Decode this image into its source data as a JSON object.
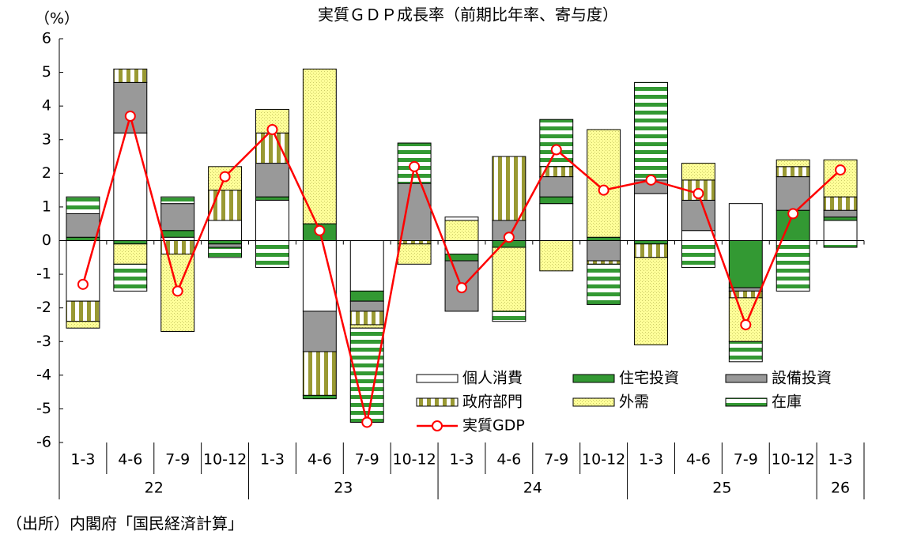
{
  "chart_data": {
    "type": "bar",
    "title": "実質ＧＤＰ成長率（前期比年率、寄与度）",
    "y_label": "（%）",
    "source": "（出所）内閣府「国民経済計算」",
    "groups": [
      {
        "label": "22",
        "categories": [
          "1-3",
          "4-6",
          "7-9",
          "10-12"
        ]
      },
      {
        "label": "23",
        "categories": [
          "1-3",
          "4-6",
          "7-9",
          "10-12"
        ]
      },
      {
        "label": "24",
        "categories": [
          "1-3",
          "4-6",
          "7-9",
          "10-12"
        ]
      },
      {
        "label": "25",
        "categories": [
          "1-3",
          "4-6",
          "7-9",
          "10-12"
        ]
      },
      {
        "label": "26",
        "categories": [
          "1-3"
        ]
      }
    ],
    "ylim": [
      -6,
      6
    ],
    "yticks": [
      -6,
      -5,
      -4,
      -3,
      -2,
      -1,
      0,
      1,
      2,
      3,
      4,
      5,
      6
    ],
    "stacked": true,
    "series": [
      {
        "name": "個人消費",
        "color": "#ffffff",
        "pattern": "solid",
        "values": [
          -1.8,
          3.2,
          0.1,
          0.6,
          1.2,
          -2.1,
          -1.5,
          0,
          -0.4,
          0,
          1.1,
          0,
          1.4,
          0.3,
          1.1,
          0,
          0.6
        ]
      },
      {
        "name": "住宅投資",
        "color": "#339933",
        "pattern": "solid",
        "values": [
          0.1,
          -0.1,
          0.2,
          -0.1,
          0.1,
          0.5,
          -0.3,
          0,
          -0.2,
          -0.2,
          0.2,
          0.1,
          -0.1,
          0,
          -1.4,
          0.9,
          0.1
        ]
      },
      {
        "name": "設備投資",
        "color": "#999999",
        "pattern": "solid",
        "values": [
          0.7,
          1.5,
          0.8,
          -0.1,
          1.0,
          -1.2,
          -0.3,
          1.7,
          -1.5,
          0.6,
          0.6,
          -0.6,
          0.4,
          0.9,
          -0.1,
          1.0,
          0.2
        ]
      },
      {
        "name": "政府部門",
        "color": "#999933",
        "pattern": "vertical-stripes",
        "values": [
          -0.6,
          0.4,
          -0.4,
          0.9,
          0.9,
          -1.3,
          -0.4,
          -0.1,
          0,
          1.9,
          0.3,
          -0.1,
          -0.4,
          0.6,
          -0.2,
          0.3,
          0.4
        ]
      },
      {
        "name": "外需",
        "color": "#ffff99",
        "pattern": "dots",
        "values": [
          -0.2,
          -0.6,
          -2.3,
          0.7,
          0.7,
          4.6,
          -0.1,
          -0.6,
          0.6,
          -1.9,
          -0.9,
          3.2,
          -2.6,
          0.5,
          -1.3,
          0.2,
          1.1
        ]
      },
      {
        "name": "在庫",
        "color": "#339933",
        "pattern": "horizontal-stripes",
        "values": [
          0.5,
          -0.8,
          0.2,
          -0.3,
          -0.8,
          -0.1,
          -2.8,
          1.2,
          0.1,
          -0.3,
          1.4,
          -1.2,
          2.9,
          -0.8,
          -0.6,
          -1.5,
          -0.2
        ]
      },
      {
        "name": "実質GDP",
        "type": "line",
        "color": "#ff0000",
        "values": [
          -1.3,
          3.7,
          -1.5,
          1.9,
          3.3,
          0.3,
          -5.4,
          2.2,
          -1.4,
          0.1,
          2.7,
          1.5,
          1.8,
          1.4,
          -2.5,
          0.8,
          2.1
        ]
      }
    ]
  }
}
